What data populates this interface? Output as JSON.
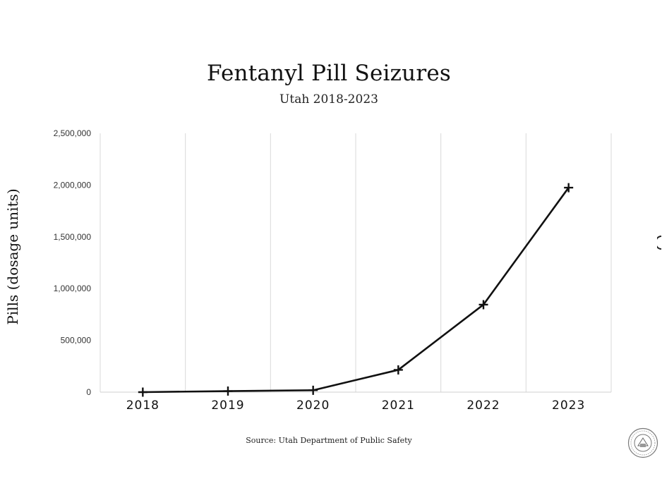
{
  "chart_data": {
    "type": "line",
    "title": "Fentanyl Pill Seizures",
    "subtitle": "Utah 2018-2023",
    "xlabel": "",
    "ylabel": "Pills (dosage units)",
    "categories": [
      "2018",
      "2019",
      "2020",
      "2021",
      "2022",
      "2023"
    ],
    "series": [
      {
        "values": [
          0,
          10000,
          18000,
          215000,
          845000,
          1975000
        ]
      }
    ],
    "ylim": [
      0,
      2500000
    ],
    "yticks": [
      0,
      500000,
      1000000,
      1500000,
      2000000,
      2500000
    ],
    "ytick_labels": [
      "0",
      "500,000",
      "1,000,000",
      "1,500,000",
      "2,000,000",
      "2,500,000"
    ],
    "grid": "vertical",
    "marker": "plus",
    "line_color": "#111111",
    "grid_color": "#d9d9d9",
    "source": "Source: Utah Department of Public Safety"
  }
}
